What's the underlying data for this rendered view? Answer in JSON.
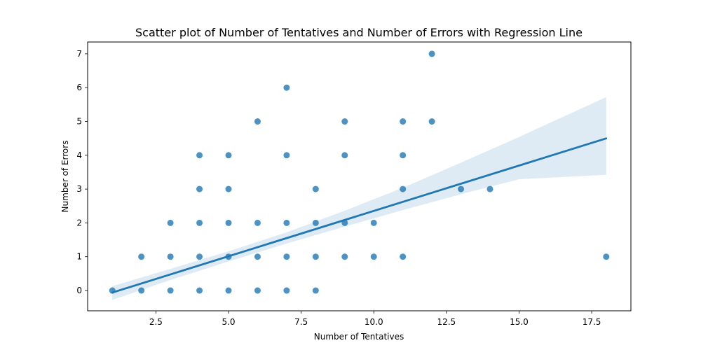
{
  "chart_data": {
    "type": "scatter",
    "title": "Scatter plot of Number of Tentatives and Number of Errors with Regression Line",
    "xlabel": "Number of Tentatives",
    "ylabel": "Number of Errors",
    "xlim": [
      0.15,
      18.85
    ],
    "ylim": [
      -0.6,
      7.35
    ],
    "x_ticks": [
      2.5,
      5.0,
      7.5,
      10.0,
      12.5,
      15.0,
      17.5
    ],
    "x_tick_labels": [
      "2.5",
      "5.0",
      "7.5",
      "10.0",
      "12.5",
      "15.0",
      "17.5"
    ],
    "y_ticks": [
      0,
      1,
      2,
      3,
      4,
      5,
      6,
      7
    ],
    "y_tick_labels": [
      "0",
      "1",
      "2",
      "3",
      "4",
      "5",
      "6",
      "7"
    ],
    "grid": false,
    "colors": {
      "points": "#1f77b4",
      "line": "#1f77b4",
      "band": "#1f77b4"
    },
    "points": [
      {
        "x": 1,
        "y": 0
      },
      {
        "x": 2,
        "y": 0
      },
      {
        "x": 2,
        "y": 1
      },
      {
        "x": 3,
        "y": 0
      },
      {
        "x": 3,
        "y": 1
      },
      {
        "x": 3,
        "y": 2
      },
      {
        "x": 4,
        "y": 0
      },
      {
        "x": 4,
        "y": 1
      },
      {
        "x": 4,
        "y": 2
      },
      {
        "x": 4,
        "y": 3
      },
      {
        "x": 4,
        "y": 4
      },
      {
        "x": 5,
        "y": 0
      },
      {
        "x": 5,
        "y": 1
      },
      {
        "x": 5,
        "y": 2
      },
      {
        "x": 5,
        "y": 3
      },
      {
        "x": 5,
        "y": 4
      },
      {
        "x": 6,
        "y": 0
      },
      {
        "x": 6,
        "y": 1
      },
      {
        "x": 6,
        "y": 2
      },
      {
        "x": 6,
        "y": 5
      },
      {
        "x": 7,
        "y": 0
      },
      {
        "x": 7,
        "y": 1
      },
      {
        "x": 7,
        "y": 2
      },
      {
        "x": 7,
        "y": 4
      },
      {
        "x": 7,
        "y": 6
      },
      {
        "x": 8,
        "y": 0
      },
      {
        "x": 8,
        "y": 1
      },
      {
        "x": 8,
        "y": 2
      },
      {
        "x": 8,
        "y": 3
      },
      {
        "x": 9,
        "y": 1
      },
      {
        "x": 9,
        "y": 2
      },
      {
        "x": 9,
        "y": 4
      },
      {
        "x": 9,
        "y": 5
      },
      {
        "x": 10,
        "y": 1
      },
      {
        "x": 10,
        "y": 2
      },
      {
        "x": 11,
        "y": 1
      },
      {
        "x": 11,
        "y": 3
      },
      {
        "x": 11,
        "y": 4
      },
      {
        "x": 11,
        "y": 5
      },
      {
        "x": 12,
        "y": 5
      },
      {
        "x": 12,
        "y": 7
      },
      {
        "x": 13,
        "y": 3
      },
      {
        "x": 14,
        "y": 3
      },
      {
        "x": 18,
        "y": 1
      }
    ],
    "regression": {
      "line": [
        {
          "x": 1,
          "y": -0.06
        },
        {
          "x": 18,
          "y": 4.5
        }
      ],
      "ci_upper": [
        {
          "x": 1,
          "y": 0.13
        },
        {
          "x": 3,
          "y": 0.64
        },
        {
          "x": 5,
          "y": 1.16
        },
        {
          "x": 7,
          "y": 1.72
        },
        {
          "x": 9,
          "y": 2.36
        },
        {
          "x": 11,
          "y": 3.04
        },
        {
          "x": 13,
          "y": 3.78
        },
        {
          "x": 15,
          "y": 4.54
        },
        {
          "x": 18,
          "y": 5.72
        }
      ],
      "ci_lower": [
        {
          "x": 1,
          "y": -0.28
        },
        {
          "x": 3,
          "y": 0.31
        },
        {
          "x": 5,
          "y": 0.86
        },
        {
          "x": 7,
          "y": 1.39
        },
        {
          "x": 9,
          "y": 1.89
        },
        {
          "x": 11,
          "y": 2.38
        },
        {
          "x": 13,
          "y": 2.85
        },
        {
          "x": 15,
          "y": 3.29
        },
        {
          "x": 18,
          "y": 3.42
        }
      ]
    }
  }
}
